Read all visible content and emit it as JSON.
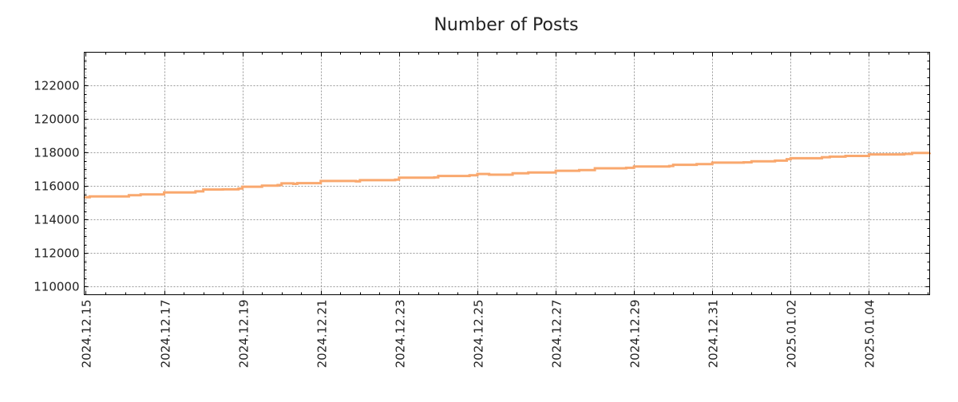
{
  "chart_data": {
    "type": "line",
    "title": "Number of Posts",
    "xlabel": "",
    "ylabel": "",
    "x_unit": "days since 2024-12-15",
    "xlim": [
      -0.04,
      21.55
    ],
    "ylim": [
      109500,
      124000
    ],
    "grid": true,
    "legend": "none",
    "line_color": "#f9a86e",
    "x_ticks": [
      {
        "value": 0,
        "label": "2024.12.15"
      },
      {
        "value": 2,
        "label": "2024.12.17"
      },
      {
        "value": 4,
        "label": "2024.12.19"
      },
      {
        "value": 6,
        "label": "2024.12.21"
      },
      {
        "value": 8,
        "label": "2024.12.23"
      },
      {
        "value": 10,
        "label": "2024.12.25"
      },
      {
        "value": 12,
        "label": "2024.12.27"
      },
      {
        "value": 14,
        "label": "2024.12.29"
      },
      {
        "value": 16,
        "label": "2024.12.31"
      },
      {
        "value": 18,
        "label": "2025.01.02"
      },
      {
        "value": 20,
        "label": "2025.01.04"
      }
    ],
    "y_ticks": [
      {
        "value": 110000,
        "label": "110000"
      },
      {
        "value": 112000,
        "label": "112000"
      },
      {
        "value": 114000,
        "label": "114000"
      },
      {
        "value": 116000,
        "label": "116000"
      },
      {
        "value": 118000,
        "label": "118000"
      },
      {
        "value": 120000,
        "label": "120000"
      },
      {
        "value": 122000,
        "label": "122000"
      }
    ],
    "series": [
      {
        "name": "Number of Posts",
        "x": [
          -0.04,
          0.1,
          1.1,
          1.4,
          2.0,
          2.8,
          3.0,
          3.5,
          3.9,
          4.0,
          4.5,
          4.9,
          5.0,
          5.3,
          5.4,
          6.0,
          6.9,
          7.0,
          7.9,
          8.0,
          8.9,
          9.0,
          9.8,
          10.0,
          10.3,
          10.9,
          11.3,
          12.0,
          12.6,
          13.0,
          13.8,
          14.0,
          14.9,
          15.0,
          15.6,
          16.0,
          16.8,
          17.0,
          17.6,
          17.9,
          18.0,
          18.8,
          19.0,
          19.4,
          20.0,
          20.9,
          21.1,
          21.55
        ],
        "y": [
          115330,
          115380,
          115450,
          115500,
          115620,
          115680,
          115790,
          115800,
          115850,
          115960,
          116020,
          116060,
          116160,
          116130,
          116170,
          116300,
          116280,
          116350,
          116380,
          116500,
          116520,
          116600,
          116640,
          116720,
          116680,
          116760,
          116810,
          116910,
          116950,
          117060,
          117090,
          117170,
          117200,
          117270,
          117310,
          117400,
          117420,
          117480,
          117520,
          117600,
          117660,
          117720,
          117760,
          117800,
          117890,
          117920,
          117980,
          117990
        ]
      }
    ]
  }
}
